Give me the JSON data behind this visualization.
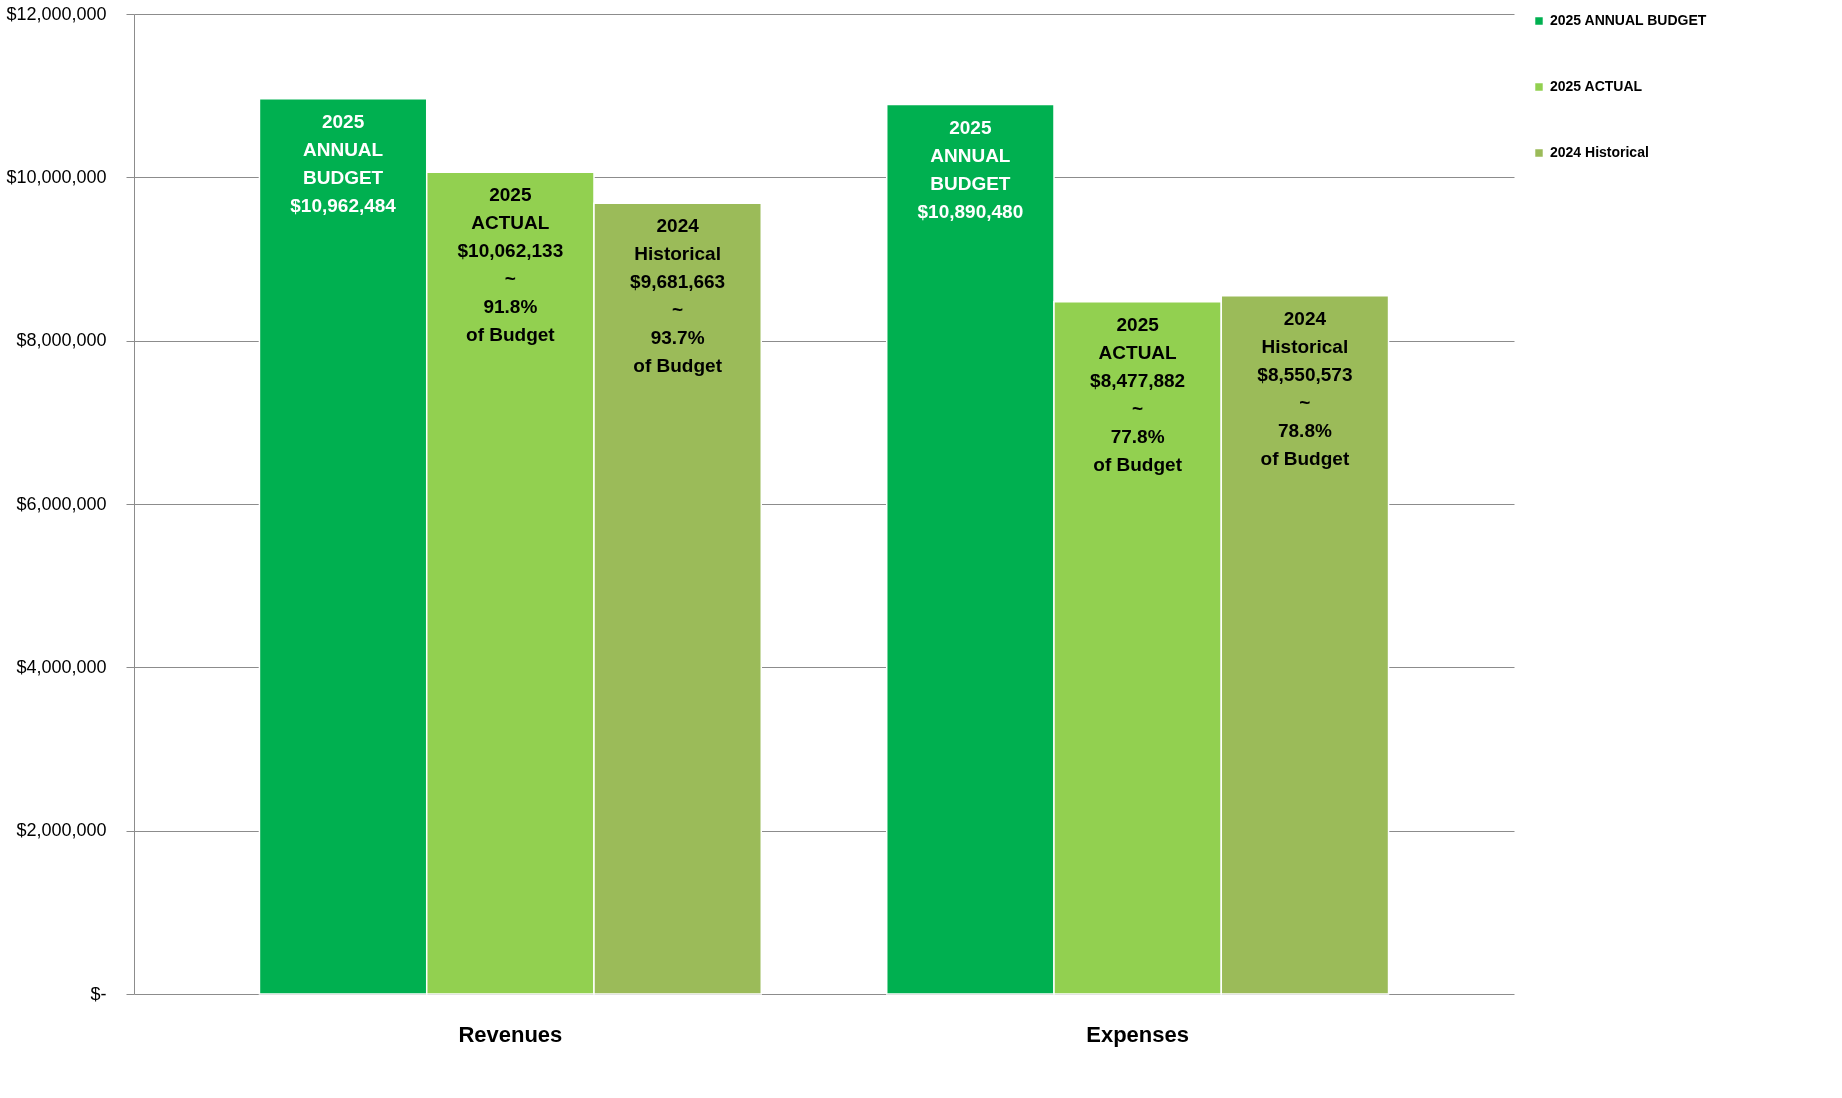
{
  "chart_data": {
    "type": "bar",
    "categories": [
      "Revenues",
      "Expenses"
    ],
    "series": [
      {
        "name": "2025 ANNUAL BUDGET",
        "color": "#00b050",
        "values": [
          10962484,
          10890480
        ],
        "value_labels": [
          "2025\nANNUAL\nBUDGET\n$10,962,484",
          "2025\nANNUAL\nBUDGET\n$10,890,480"
        ]
      },
      {
        "name": "2025 ACTUAL",
        "color": "#92d050",
        "values": [
          10062133,
          8477882
        ],
        "value_labels": [
          "2025\nACTUAL\n$10,062,133\n~\n91.8%\nof Budget",
          "2025\nACTUAL\n$8,477,882\n~\n77.8%\nof Budget"
        ]
      },
      {
        "name": "2024 Historical",
        "color": "#9bbb59",
        "values": [
          9681663,
          8550573
        ],
        "value_labels": [
          "2024\nHistorical\n$9,681,663\n~\n93.7%\nof Budget",
          "2024\nHistorical\n$8,550,573\n~\n78.8%\nof Budget"
        ]
      }
    ],
    "ylim": [
      0,
      12000000
    ],
    "yticks": [
      {
        "value": 0,
        "label": "$-"
      },
      {
        "value": 2000000,
        "label": "$2,000,000"
      },
      {
        "value": 4000000,
        "label": "$4,000,000"
      },
      {
        "value": 6000000,
        "label": "$6,000,000"
      },
      {
        "value": 8000000,
        "label": "$8,000,000"
      },
      {
        "value": 10000000,
        "label": "$10,000,000"
      },
      {
        "value": 12000000,
        "label": "$12,000,000"
      }
    ],
    "grid": "y",
    "legend": "right"
  }
}
